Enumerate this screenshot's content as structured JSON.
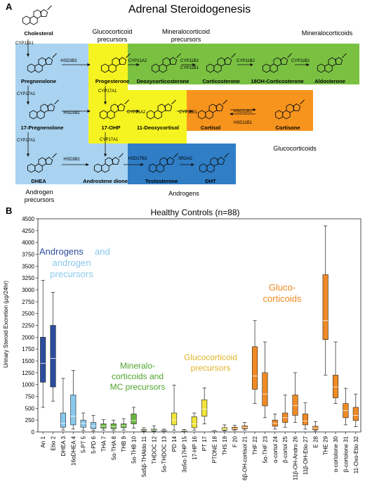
{
  "panel_a": {
    "letter": "A",
    "title": "Adrenal Steroidogenesis",
    "colors": {
      "blue": "#a9d3f0",
      "yellow": "#f5f320",
      "green": "#7ac142",
      "orange": "#f7941d",
      "darkblue": "#2f7ec6"
    },
    "region_labels": {
      "gluco_prec": "Glucocorticoid\nprecursors",
      "mineral_prec": "Mineralocorticoid\nprecursors",
      "mineral": "Mineralocorticoids",
      "gluco": "Glucocorticoids",
      "andro_prec": "Androgen\nprecursors",
      "andro": "Androgens"
    },
    "compounds": {
      "cholesterol": "Cholesterol",
      "pregnenolone": "Pregnenolone",
      "progesterone": "Progesterone",
      "doc": "Deoxycorticosterone",
      "b": "Corticosterone",
      "oh18b": "18OH-Corticosterone",
      "aldo": "Aldosterone",
      "preg17": "17-Pregnenolone",
      "ohp17": "17-OHP",
      "s": "11-Deoxycortisol",
      "f": "Cortisol",
      "e": "Cortisone",
      "dhea": "DHEA",
      "adione": "Androstene dione",
      "t": "Testosterone",
      "dht": "DHT"
    },
    "enzymes": {
      "cyp11a1": "CYP11A1",
      "hsd3b2_a": "HSD3B2",
      "cyp21a2_a": "CYP21A2",
      "cyp11b2_a": "CYP11B2",
      "cyp11b1_a": "CYP11B1",
      "cyp11b2_b": "CYP11B2",
      "cyp11b2_c": "CYP11B2",
      "cyp17a1_a": "CYP17A1",
      "cyp17a1_b": "CYP17A1",
      "hsd3b2_b": "HSD3B2",
      "cyp21a2_b": "CYP21A2",
      "cyp11b1_b": "CYP11B1",
      "hsd11b2": "HSD11B2",
      "hsd11b1": "HSD11B1",
      "cyp17a1_c": "CYP17A1",
      "cyp17a1_d": "CYP17A1",
      "hsd3b2_c": "HSD3B2",
      "hsd17b3": "HSD17B3",
      "srd5a2": "SRDA2"
    }
  },
  "panel_b": {
    "letter": "B",
    "annotations": {
      "andro_1": "Androgens",
      "andro_1b": "and",
      "andro_2": "androgen",
      "andro_3": "precursors",
      "min_1": "Mineralo-",
      "min_2": "corticoids and",
      "min_3": "MC precursors",
      "gp_1": "Glucocorticoid",
      "gp_2": "precursors",
      "gc_1": "Gluco-",
      "gc_2": "corticoids"
    }
  },
  "chart_data": {
    "type": "box",
    "title": "Healthy Controls (n=88)",
    "xlabel": "",
    "ylabel": "Urinary Steroid Excretion (µg/24hr)",
    "ylim": [
      0,
      4500
    ],
    "yticks": [
      0,
      250,
      500,
      750,
      1000,
      1250,
      1500,
      1750,
      2000,
      2250,
      2500,
      2750,
      3000,
      3250,
      3500,
      3750,
      4000,
      4250,
      4500
    ],
    "grid": false,
    "legend": "none",
    "group_colors": {
      "androgen": "#2b4d9e",
      "androgen_precursor": "#89c9ec",
      "mineralo": "#6ab43c",
      "gluco_precursor": "#f2e43a",
      "gluco": "#f08a24"
    },
    "categories": [
      "An 1",
      "Etio 2",
      "DHEA 3",
      "16αDHEA 4",
      "5-PT 5",
      "5-PD 6",
      "THA 7",
      "5α-THA 8",
      "THB 9",
      "5α-THB 10",
      "5α5β-THAldo 11",
      "THDOC 12",
      "5α-THDOC 13",
      "PD 14",
      "3α5α-17HP 15",
      "17-HP 16",
      "PT 17",
      "PTONE 18",
      "THS 19",
      "F 20",
      "6β-OH-cortisol 21",
      "THF 22",
      "5α-THF 23",
      "α-cortol 24",
      "β-cortol 25",
      "11β-OH-Andro 26",
      "11β-OH-Etio 27",
      "E 28",
      "THE 29",
      "α-cortolone 30",
      "β-cortolone 31",
      "11-Oxo-Etio 32"
    ],
    "groups": [
      "androgen",
      "androgen",
      "androgen_precursor",
      "androgen_precursor",
      "androgen_precursor",
      "androgen_precursor",
      "mineralo",
      "mineralo",
      "mineralo",
      "mineralo",
      "mineralo",
      "mineralo",
      "mineralo",
      "gluco_precursor",
      "gluco_precursor",
      "gluco_precursor",
      "gluco_precursor",
      "gluco_precursor",
      "gluco_precursor",
      "gluco",
      "gluco",
      "gluco",
      "gluco",
      "gluco",
      "gluco",
      "gluco",
      "gluco",
      "gluco",
      "gluco",
      "gluco",
      "gluco",
      "gluco"
    ],
    "boxes": [
      {
        "min": 520,
        "q1": 1050,
        "median": 1450,
        "q3": 2000,
        "max": 3200
      },
      {
        "min": 650,
        "q1": 950,
        "median": 1550,
        "q3": 2250,
        "max": 2950
      },
      {
        "min": 40,
        "q1": 100,
        "median": 180,
        "q3": 400,
        "max": 1130
      },
      {
        "min": 60,
        "q1": 150,
        "median": 330,
        "q3": 780,
        "max": 1300
      },
      {
        "min": 30,
        "q1": 100,
        "median": 180,
        "q3": 250,
        "max": 400
      },
      {
        "min": 20,
        "q1": 70,
        "median": 130,
        "q3": 200,
        "max": 350
      },
      {
        "min": 40,
        "q1": 80,
        "median": 120,
        "q3": 170,
        "max": 260
      },
      {
        "min": 30,
        "q1": 70,
        "median": 110,
        "q3": 170,
        "max": 250
      },
      {
        "min": 40,
        "q1": 90,
        "median": 130,
        "q3": 170,
        "max": 280
      },
      {
        "min": 80,
        "q1": 170,
        "median": 240,
        "q3": 380,
        "max": 520
      },
      {
        "min": 10,
        "q1": 25,
        "median": 40,
        "q3": 55,
        "max": 90
      },
      {
        "min": 10,
        "q1": 25,
        "median": 40,
        "q3": 60,
        "max": 130
      },
      {
        "min": 5,
        "q1": 15,
        "median": 25,
        "q3": 35,
        "max": 60
      },
      {
        "min": 40,
        "q1": 150,
        "median": 250,
        "q3": 400,
        "max": 990
      },
      {
        "min": 5,
        "q1": 10,
        "median": 20,
        "q3": 30,
        "max": 50
      },
      {
        "min": 40,
        "q1": 90,
        "median": 170,
        "q3": 320,
        "max": 400
      },
      {
        "min": 170,
        "q1": 330,
        "median": 480,
        "q3": 680,
        "max": 930
      },
      {
        "min": 5,
        "q1": 10,
        "median": 15,
        "q3": 20,
        "max": 30
      },
      {
        "min": 20,
        "q1": 40,
        "median": 60,
        "q3": 90,
        "max": 150
      },
      {
        "min": 30,
        "q1": 50,
        "median": 70,
        "q3": 100,
        "max": 140
      },
      {
        "min": 40,
        "q1": 70,
        "median": 100,
        "q3": 130,
        "max": 200
      },
      {
        "min": 600,
        "q1": 900,
        "median": 1180,
        "q3": 1800,
        "max": 2350
      },
      {
        "min": 300,
        "q1": 550,
        "median": 800,
        "q3": 1250,
        "max": 1900
      },
      {
        "min": 60,
        "q1": 120,
        "median": 180,
        "q3": 250,
        "max": 380
      },
      {
        "min": 100,
        "q1": 200,
        "median": 300,
        "q3": 400,
        "max": 780
      },
      {
        "min": 200,
        "q1": 350,
        "median": 560,
        "q3": 780,
        "max": 1250
      },
      {
        "min": 60,
        "q1": 150,
        "median": 230,
        "q3": 380,
        "max": 620
      },
      {
        "min": 20,
        "q1": 50,
        "median": 80,
        "q3": 120,
        "max": 220
      },
      {
        "min": 1200,
        "q1": 1950,
        "median": 2350,
        "q3": 3320,
        "max": 4350
      },
      {
        "min": 600,
        "q1": 720,
        "median": 950,
        "q3": 1200,
        "max": 1900
      },
      {
        "min": 150,
        "q1": 300,
        "median": 450,
        "q3": 600,
        "max": 920
      },
      {
        "min": 110,
        "q1": 240,
        "median": 350,
        "q3": 520,
        "max": 800
      }
    ]
  }
}
